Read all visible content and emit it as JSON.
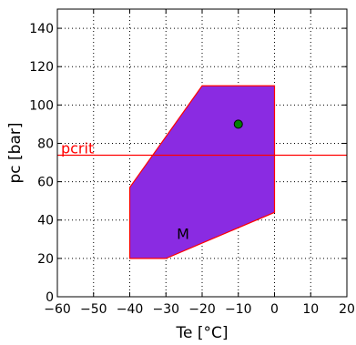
{
  "chart_data": {
    "type": "scatter",
    "xlabel": "Te [°C]",
    "ylabel": "pc [bar]",
    "xlim": [
      -60,
      20
    ],
    "ylim": [
      0,
      150
    ],
    "xticks": [
      -60,
      -50,
      -40,
      -30,
      -20,
      -10,
      0,
      10,
      20
    ],
    "yticks": [
      0,
      20,
      40,
      60,
      80,
      100,
      120,
      140
    ],
    "grid": true,
    "grid_style": "dotted",
    "envelope": {
      "label": "M",
      "label_position": [
        -27,
        33
      ],
      "fill_color": "#8a2be2",
      "edge_color": "#ff0000",
      "vertices": [
        [
          -40,
          20
        ],
        [
          -30,
          20
        ],
        [
          0,
          44
        ],
        [
          0,
          110
        ],
        [
          -20,
          110
        ],
        [
          -40,
          57
        ]
      ]
    },
    "critical_line": {
      "label": "pcrit",
      "y": 73.8,
      "label_x": -59,
      "color": "#ff0000"
    },
    "points": [
      {
        "x": -10,
        "y": 90,
        "color": "#008000"
      }
    ]
  }
}
